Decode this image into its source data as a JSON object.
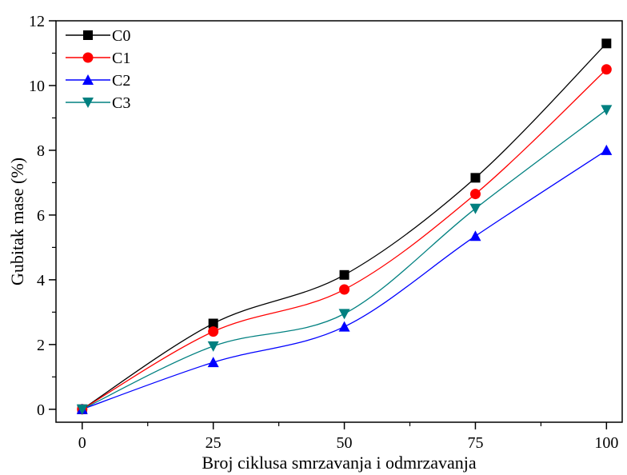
{
  "chart_data": {
    "type": "line",
    "title": "",
    "xlabel": "Broj ciklusa smrzavanja i odmrzavanja",
    "ylabel": "Gubitak mase (%)",
    "xlim": [
      -5,
      103
    ],
    "ylim": [
      -0.4,
      12
    ],
    "x_ticks": [
      0,
      25,
      50,
      75,
      100
    ],
    "y_ticks": [
      0,
      2,
      4,
      6,
      8,
      10,
      12
    ],
    "grid": false,
    "legend_position": "top-left",
    "x": [
      0,
      25,
      50,
      75,
      100
    ],
    "series": [
      {
        "name": "C0",
        "values": [
          0,
          2.65,
          4.15,
          7.15,
          11.3
        ],
        "color": "#000000",
        "marker": "square"
      },
      {
        "name": "C1",
        "values": [
          0,
          2.4,
          3.7,
          6.65,
          10.5
        ],
        "color": "#ff0000",
        "marker": "circle"
      },
      {
        "name": "C2",
        "values": [
          0,
          1.45,
          2.55,
          5.35,
          8.0
        ],
        "color": "#0000ff",
        "marker": "triangle-up"
      },
      {
        "name": "C3",
        "values": [
          0,
          1.95,
          2.95,
          6.2,
          9.25
        ],
        "color": "#008080",
        "marker": "triangle-down"
      }
    ]
  }
}
